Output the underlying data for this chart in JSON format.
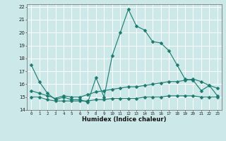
{
  "xlabel": "Humidex (Indice chaleur)",
  "bg_color": "#cce8e8",
  "grid_color": "#b8d8d8",
  "line_color": "#1a7a6e",
  "xlim": [
    -0.5,
    23.5
  ],
  "ylim": [
    14,
    22.2
  ],
  "yticks": [
    14,
    15,
    16,
    17,
    18,
    19,
    20,
    21,
    22
  ],
  "xticks": [
    0,
    1,
    2,
    3,
    4,
    5,
    6,
    7,
    8,
    9,
    10,
    11,
    12,
    13,
    14,
    15,
    16,
    17,
    18,
    19,
    20,
    21,
    22,
    23
  ],
  "series1_x": [
    0,
    1,
    2,
    3,
    4,
    5,
    6,
    7,
    8,
    9,
    10,
    11,
    12,
    13,
    14,
    15,
    16,
    17,
    18,
    19,
    20,
    21,
    22,
    23
  ],
  "series1_y": [
    17.5,
    16.2,
    15.3,
    14.8,
    15.0,
    14.8,
    14.8,
    14.6,
    16.5,
    15.0,
    18.2,
    20.0,
    21.8,
    20.5,
    20.2,
    19.3,
    19.2,
    18.6,
    17.5,
    16.4,
    16.3,
    15.5,
    15.9,
    15.1
  ],
  "series2_x": [
    0,
    1,
    2,
    3,
    4,
    5,
    6,
    7,
    8,
    9,
    10,
    11,
    12,
    13,
    14,
    15,
    16,
    17,
    18,
    19,
    20,
    21,
    22,
    23
  ],
  "series2_y": [
    15.5,
    15.3,
    15.1,
    14.9,
    15.1,
    15.0,
    15.0,
    15.2,
    15.4,
    15.5,
    15.6,
    15.7,
    15.8,
    15.8,
    15.9,
    16.0,
    16.1,
    16.2,
    16.2,
    16.3,
    16.4,
    16.2,
    15.9,
    15.7
  ],
  "series3_x": [
    0,
    1,
    2,
    3,
    4,
    5,
    6,
    7,
    8,
    9,
    10,
    11,
    12,
    13,
    14,
    15,
    16,
    17,
    18,
    19,
    20,
    21,
    22,
    23
  ],
  "series3_y": [
    15.0,
    15.0,
    14.8,
    14.7,
    14.7,
    14.7,
    14.7,
    14.7,
    14.8,
    14.8,
    14.9,
    14.9,
    14.9,
    14.9,
    15.0,
    15.0,
    15.0,
    15.1,
    15.1,
    15.1,
    15.1,
    15.0,
    15.0,
    15.0
  ]
}
